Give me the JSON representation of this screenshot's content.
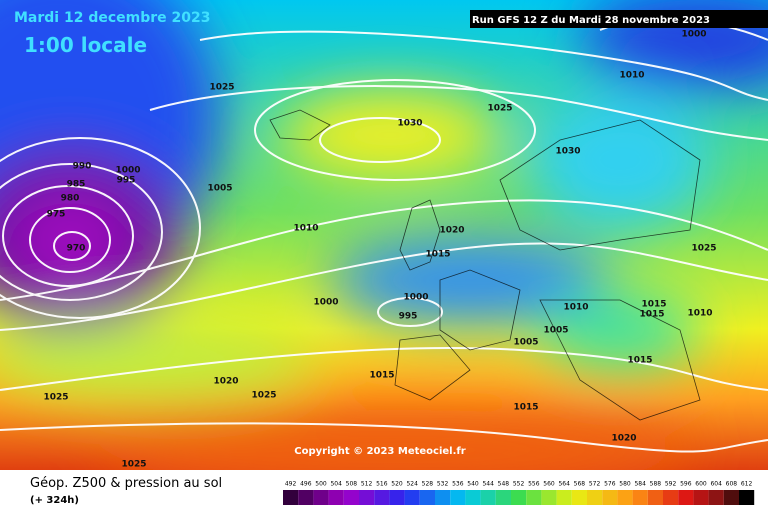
{
  "header": {
    "date": "Mardi 12 decembre 2023",
    "time": "1:00 locale",
    "run": "Run GFS 12 Z du Mardi 28 novembre 2023"
  },
  "isobar_labels": [
    1025,
    1030,
    1025,
    1030,
    1010,
    1000,
    990,
    1000,
    995,
    985,
    980,
    975,
    970,
    1005,
    1010,
    1020,
    1015,
    1025,
    1000,
    1000,
    995,
    1010,
    1015,
    1015,
    1010,
    1005,
    1005,
    1015,
    1020,
    1025,
    1025,
    1015,
    1015,
    1020,
    1025
  ],
  "copyright": "Copyright © 2023 Meteociel.fr",
  "footer": {
    "title": "Géop. Z500 & pression au sol",
    "lead": "(+ 324h)"
  },
  "scale": [
    492,
    496,
    500,
    504,
    508,
    512,
    516,
    520,
    524,
    528,
    532,
    536,
    540,
    544,
    548,
    552,
    556,
    560,
    564,
    568,
    572,
    576,
    580,
    584,
    588,
    592,
    596,
    600,
    604,
    608,
    612
  ]
}
